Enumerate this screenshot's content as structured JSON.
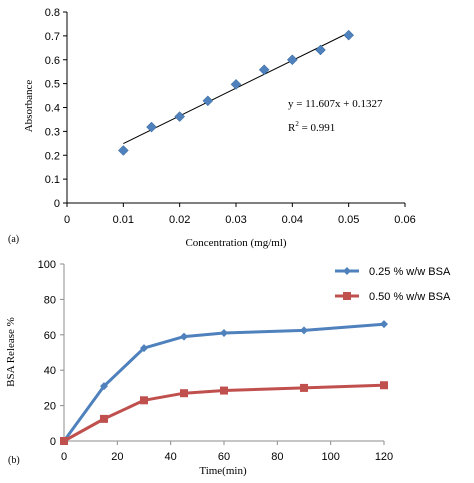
{
  "chart_data": [
    {
      "type": "scatter",
      "panel_label": "(a)",
      "xlabel": "Concentration (mg/ml)",
      "ylabel": "Absorbance",
      "xlim": [
        0,
        0.06
      ],
      "ylim": [
        0,
        0.8
      ],
      "x_ticks": [
        "0",
        "0.01",
        "0.02",
        "0.03",
        "0.04",
        "0.05",
        "0.06"
      ],
      "y_ticks": [
        "0",
        "0.1",
        "0.2",
        "0.3",
        "0.4",
        "0.5",
        "0.6",
        "0.7",
        "0.8"
      ],
      "grid": false,
      "marker_color": "#4f81bd",
      "points": [
        {
          "x": 0.01,
          "y": 0.22
        },
        {
          "x": 0.015,
          "y": 0.318
        },
        {
          "x": 0.02,
          "y": 0.362
        },
        {
          "x": 0.025,
          "y": 0.428
        },
        {
          "x": 0.03,
          "y": 0.497
        },
        {
          "x": 0.035,
          "y": 0.558
        },
        {
          "x": 0.04,
          "y": 0.6
        },
        {
          "x": 0.045,
          "y": 0.641
        },
        {
          "x": 0.05,
          "y": 0.703
        }
      ],
      "trendline": {
        "slope": 11.607,
        "intercept": 0.1327,
        "x_range": [
          0.01,
          0.05
        ]
      },
      "equation": "y = 11.607x + 0.1327",
      "r2_prefix": "R",
      "r2_sup": "2",
      "r2_suffix": " = 0.991"
    },
    {
      "type": "line",
      "panel_label": "(b)",
      "xlabel": "Time(min)",
      "ylabel": "BSA Release %",
      "xlim": [
        0,
        120
      ],
      "ylim": [
        0,
        100
      ],
      "x_ticks": [
        "0",
        "20",
        "40",
        "60",
        "80",
        "100",
        "120"
      ],
      "y_ticks": [
        "0",
        "20",
        "40",
        "60",
        "80",
        "100"
      ],
      "grid": false,
      "legend_position": "top-right",
      "x": [
        0,
        15,
        30,
        45,
        60,
        90,
        120
      ],
      "series": [
        {
          "name": "0.25 % w/w BSA",
          "color": "#4f81bd",
          "marker": "diamond",
          "values": [
            0,
            31,
            52.5,
            59,
            61,
            62.5,
            66
          ]
        },
        {
          "name": "0.50 % w/w BSA",
          "color": "#c0504d",
          "marker": "square",
          "values": [
            0,
            12.5,
            23,
            27,
            28.5,
            30,
            31.5
          ]
        }
      ]
    }
  ]
}
